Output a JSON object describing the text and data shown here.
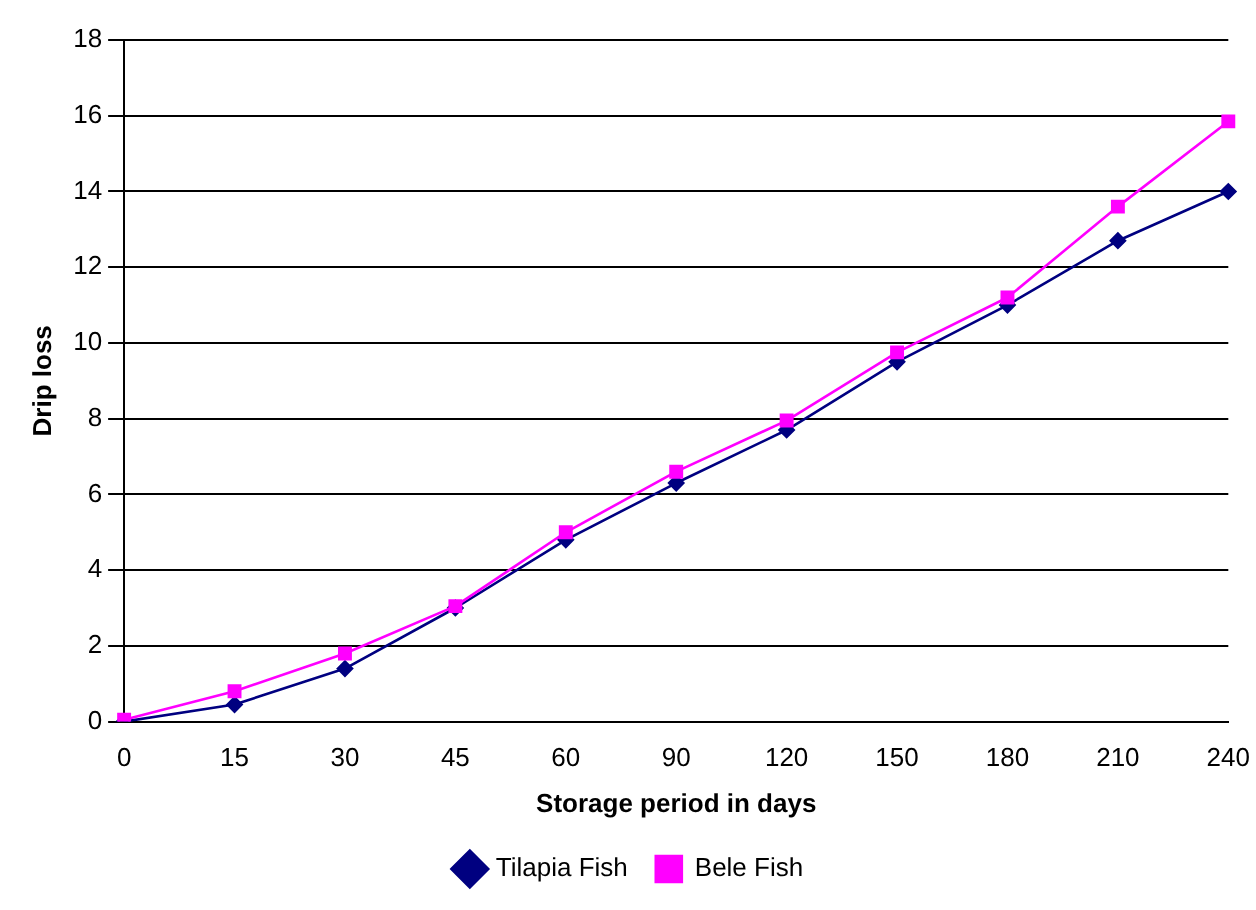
{
  "chart_data": {
    "type": "line",
    "xlabel": "Storage period in days",
    "ylabel": "Drip loss",
    "categories": [
      "0",
      "15",
      "30",
      "45",
      "60",
      "90",
      "120",
      "150",
      "180",
      "210",
      "240"
    ],
    "series": [
      {
        "name": "Tilapia Fish",
        "color": "#000080",
        "marker": "diamond",
        "values": [
          0,
          0.45,
          1.4,
          3.0,
          4.8,
          6.3,
          7.7,
          9.5,
          11.0,
          12.7,
          14.0
        ]
      },
      {
        "name": "Bele Fish",
        "color": "#ff00ff",
        "marker": "square",
        "values": [
          0.05,
          0.8,
          1.8,
          3.05,
          5.0,
          6.6,
          7.95,
          9.75,
          11.2,
          13.6,
          15.85
        ]
      }
    ],
    "ylim": [
      0,
      18
    ],
    "yticks": [
      0,
      2,
      4,
      6,
      8,
      10,
      12,
      14,
      16,
      18
    ],
    "grid": "y",
    "legend": "bottom"
  }
}
